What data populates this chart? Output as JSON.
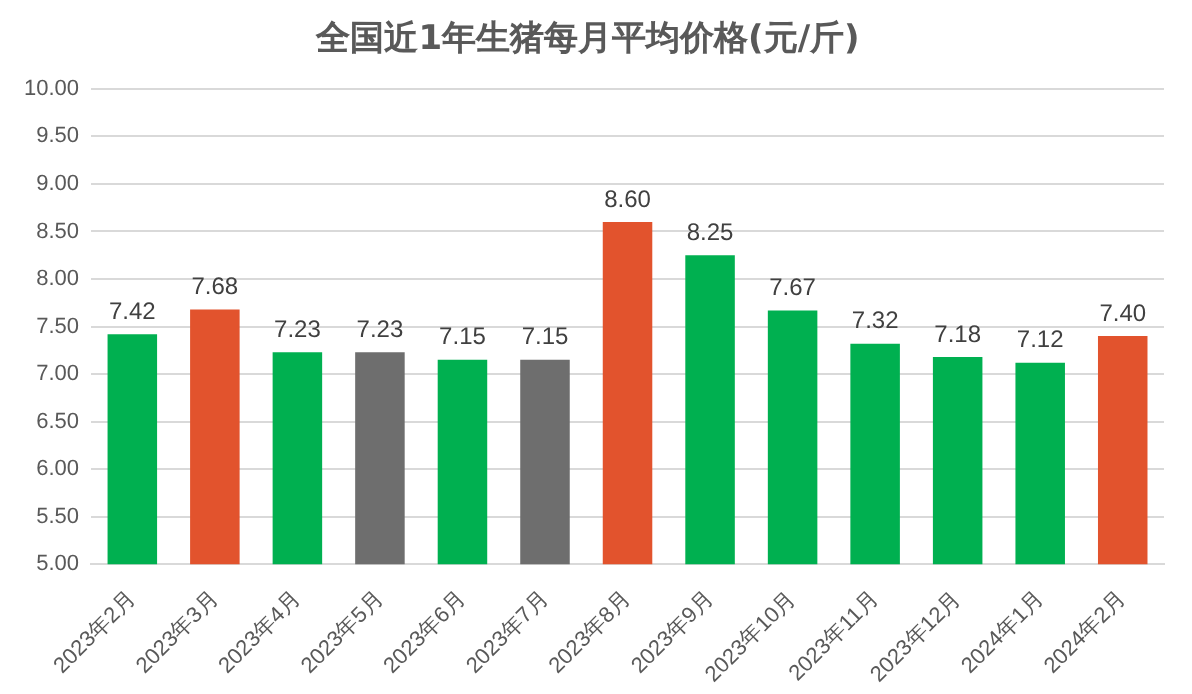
{
  "chart_data": {
    "type": "bar",
    "title": "全国近1年生猪每月平均价格(元/斤)",
    "categories": [
      "2023年2月",
      "2023年3月",
      "2023年4月",
      "2023年5月",
      "2023年6月",
      "2023年7月",
      "2023年8月",
      "2023年9月",
      "2023年10月",
      "2023年11月",
      "2023年12月",
      "2024年1月",
      "2024年2月"
    ],
    "values": [
      7.42,
      7.68,
      7.23,
      7.23,
      7.15,
      7.15,
      8.6,
      8.25,
      7.67,
      7.32,
      7.18,
      7.12,
      7.4
    ],
    "value_labels": [
      "7.42",
      "7.68",
      "7.23",
      "7.23",
      "7.15",
      "7.15",
      "8.60",
      "8.25",
      "7.67",
      "7.32",
      "7.18",
      "7.12",
      "7.40"
    ],
    "colors": [
      "#00b050",
      "#e2532d",
      "#00b050",
      "#6e6e6e",
      "#00b050",
      "#6e6e6e",
      "#e2532d",
      "#00b050",
      "#00b050",
      "#00b050",
      "#00b050",
      "#00b050",
      "#e2532d"
    ],
    "ylim": [
      5,
      10
    ],
    "yticks": [
      {
        "value": 5,
        "label": "5.00"
      },
      {
        "value": 5.5,
        "label": "5.50"
      },
      {
        "value": 6,
        "label": "6.00"
      },
      {
        "value": 6.5,
        "label": "6.50"
      },
      {
        "value": 7,
        "label": "7.00"
      },
      {
        "value": 7.5,
        "label": "7.50"
      },
      {
        "value": 8,
        "label": "8.00"
      },
      {
        "value": 8.5,
        "label": "8.50"
      },
      {
        "value": 9,
        "label": "9.00"
      },
      {
        "value": 9.5,
        "label": "9.50"
      },
      {
        "value": 10,
        "label": "10.00"
      }
    ],
    "grid": "y",
    "legend": false
  }
}
